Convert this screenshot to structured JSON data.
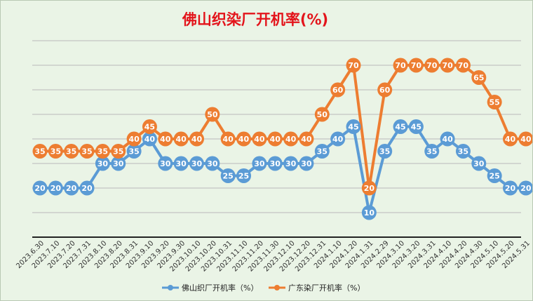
{
  "chart_data": {
    "type": "line",
    "title": "佛山织染厂开机率(%)",
    "ylim": [
      0,
      80
    ],
    "grid": true,
    "legend_position": "bottom",
    "categories": [
      "2023.6.30",
      "2023.7.10",
      "2023.7.20",
      "2023.7.31",
      "2023.8.10",
      "2023.8.20",
      "2023.8.31",
      "2023.9.10",
      "2023.9.20",
      "2023.9.30",
      "2023.10.10",
      "2023.10.20",
      "2023.10.31",
      "2023.11.10",
      "2023.11.20",
      "2023.11.30",
      "2023.12.10",
      "2023.12.20",
      "2023.12.31",
      "2024.1.10",
      "2024.1.20",
      "2024.1.31",
      "2024.2.29",
      "2024.3.10",
      "2024.3.20",
      "2024.3.31",
      "2024.4.10",
      "2024.4.20",
      "2024.4.30",
      "2024.5.10",
      "2024.5.20",
      "2024.5.31"
    ],
    "series": [
      {
        "name": "佛山织厂开机率（%）",
        "color": "#5b9bd5",
        "values": [
          20,
          20,
          20,
          20,
          30,
          30,
          35,
          40,
          30,
          30,
          30,
          30,
          25,
          25,
          30,
          30,
          30,
          30,
          35,
          40,
          45,
          10,
          35,
          45,
          45,
          35,
          40,
          35,
          30,
          25,
          20,
          20
        ]
      },
      {
        "name": "广东染厂开机率（%）",
        "color": "#ed7d31",
        "values": [
          35,
          35,
          35,
          35,
          35,
          35,
          40,
          45,
          40,
          40,
          40,
          50,
          40,
          40,
          40,
          40,
          40,
          40,
          50,
          60,
          70,
          20,
          60,
          70,
          70,
          70,
          70,
          70,
          65,
          55,
          40,
          40
        ]
      }
    ]
  }
}
